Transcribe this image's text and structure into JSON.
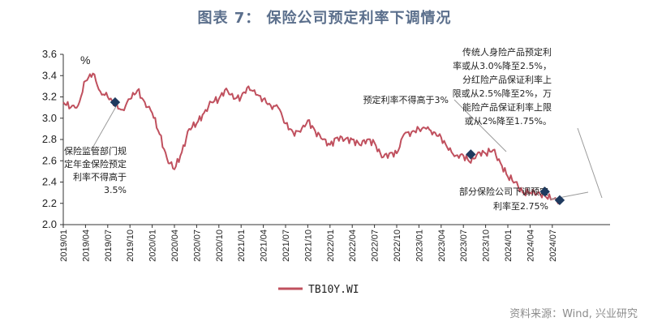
{
  "title": "图表 7：  保险公司预定利率下调情况",
  "source": "资料来源：Wind, 兴业研究",
  "chart_data": {
    "type": "line",
    "unit": "%",
    "ylim": [
      2.0,
      3.6
    ],
    "y_ticks": [
      "2.0",
      "2.2",
      "2.4",
      "2.6",
      "2.8",
      "3.0",
      "3.2",
      "3.4",
      "3.6"
    ],
    "x_ticks": [
      "2019/01",
      "2019/04",
      "2019/07",
      "2019/10",
      "2020/01",
      "2020/04",
      "2020/07",
      "2020/10",
      "2021/01",
      "2021/04",
      "2021/07",
      "2021/10",
      "2022/01",
      "2022/04",
      "2022/07",
      "2022/10",
      "2023/01",
      "2023/04",
      "2023/07",
      "2023/10",
      "2024/01",
      "2024/04",
      "2024/07"
    ],
    "legend": "TB10Y.WI",
    "series": [
      {
        "name": "TB10Y.WI",
        "color": "#c0505e",
        "points": [
          [
            "2019/01",
            3.15
          ],
          [
            "2019/02",
            3.1
          ],
          [
            "2019/03",
            3.12
          ],
          [
            "2019/04",
            3.35
          ],
          [
            "2019/05",
            3.42
          ],
          [
            "2019/06",
            3.25
          ],
          [
            "2019/07",
            3.2
          ],
          [
            "2019/08",
            3.12
          ],
          [
            "2019/09",
            3.08
          ],
          [
            "2019/10",
            3.18
          ],
          [
            "2019/11",
            3.26
          ],
          [
            "2019/12",
            3.15
          ],
          [
            "2020/01",
            3.05
          ],
          [
            "2020/02",
            2.85
          ],
          [
            "2020/03",
            2.62
          ],
          [
            "2020/04",
            2.52
          ],
          [
            "2020/05",
            2.68
          ],
          [
            "2020/06",
            2.9
          ],
          [
            "2020/07",
            2.95
          ],
          [
            "2020/08",
            3.05
          ],
          [
            "2020/09",
            3.15
          ],
          [
            "2020/10",
            3.18
          ],
          [
            "2020/11",
            3.28
          ],
          [
            "2020/12",
            3.18
          ],
          [
            "2021/01",
            3.2
          ],
          [
            "2021/02",
            3.3
          ],
          [
            "2021/03",
            3.22
          ],
          [
            "2021/04",
            3.18
          ],
          [
            "2021/05",
            3.12
          ],
          [
            "2021/06",
            3.1
          ],
          [
            "2021/07",
            2.95
          ],
          [
            "2021/08",
            2.87
          ],
          [
            "2021/09",
            2.87
          ],
          [
            "2021/10",
            2.98
          ],
          [
            "2021/11",
            2.88
          ],
          [
            "2021/12",
            2.8
          ],
          [
            "2022/01",
            2.75
          ],
          [
            "2022/02",
            2.82
          ],
          [
            "2022/03",
            2.8
          ],
          [
            "2022/04",
            2.8
          ],
          [
            "2022/05",
            2.75
          ],
          [
            "2022/06",
            2.8
          ],
          [
            "2022/07",
            2.77
          ],
          [
            "2022/08",
            2.63
          ],
          [
            "2022/09",
            2.67
          ],
          [
            "2022/10",
            2.67
          ],
          [
            "2022/11",
            2.85
          ],
          [
            "2022/12",
            2.87
          ],
          [
            "2023/01",
            2.9
          ],
          [
            "2023/02",
            2.9
          ],
          [
            "2023/03",
            2.87
          ],
          [
            "2023/04",
            2.82
          ],
          [
            "2023/05",
            2.7
          ],
          [
            "2023/06",
            2.65
          ],
          [
            "2023/07",
            2.65
          ],
          [
            "2023/08",
            2.58
          ],
          [
            "2023/09",
            2.68
          ],
          [
            "2023/10",
            2.67
          ],
          [
            "2023/11",
            2.7
          ],
          [
            "2023/12",
            2.58
          ],
          [
            "2024/01",
            2.45
          ],
          [
            "2024/02",
            2.4
          ],
          [
            "2024/03",
            2.3
          ],
          [
            "2024/04",
            2.3
          ],
          [
            "2024/05",
            2.3
          ],
          [
            "2024/06",
            2.27
          ],
          [
            "2024/07",
            2.24
          ],
          [
            "2024/08",
            2.22
          ]
        ]
      }
    ],
    "markers": [
      {
        "date": "2019/08",
        "value": 3.15
      },
      {
        "date": "2023/08",
        "value": 2.66
      },
      {
        "date": "2024/06",
        "value": 2.31
      },
      {
        "date": "2024/08",
        "value": 2.23
      }
    ],
    "annotations": [
      {
        "lines": [
          "保险监管部门规",
          "定年金保险预定",
          "利率不得高于",
          "3.5%"
        ]
      },
      {
        "lines": [
          "预定利率不得高于3%"
        ]
      },
      {
        "lines": [
          "传统人身险产品预定利",
          "率或从3.0%降至2.5%，",
          "分红险产品保证利率上",
          "限或从2.5%降至2%，万",
          "能险产品保证利率上限",
          "或从2%降至1.75%。"
        ]
      },
      {
        "lines": [
          "部分保险公司下调预定",
          "利率至2.75%"
        ]
      }
    ]
  }
}
